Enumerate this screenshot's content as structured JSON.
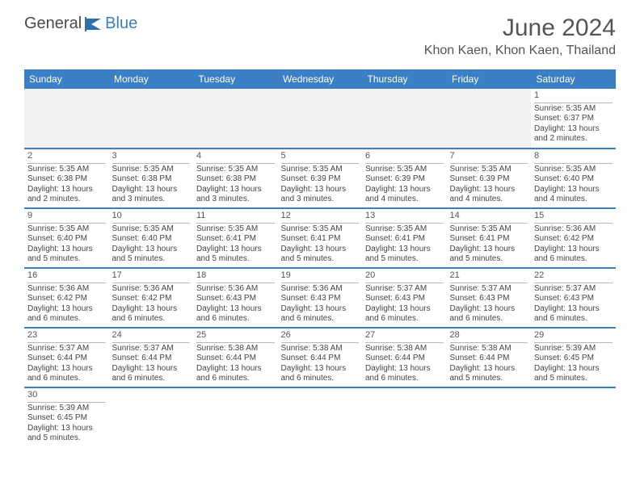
{
  "logo": {
    "part1": "General",
    "part2": "Blue"
  },
  "title": "June 2024",
  "location": "Khon Kaen, Khon Kaen, Thailand",
  "header_bg": "#3b7fc4",
  "weekdays": [
    "Sunday",
    "Monday",
    "Tuesday",
    "Wednesday",
    "Thursday",
    "Friday",
    "Saturday"
  ],
  "weeks": [
    [
      null,
      null,
      null,
      null,
      null,
      null,
      {
        "n": "1",
        "sr": "Sunrise: 5:35 AM",
        "ss": "Sunset: 6:37 PM",
        "dl": "Daylight: 13 hours and 2 minutes."
      }
    ],
    [
      {
        "n": "2",
        "sr": "Sunrise: 5:35 AM",
        "ss": "Sunset: 6:38 PM",
        "dl": "Daylight: 13 hours and 2 minutes."
      },
      {
        "n": "3",
        "sr": "Sunrise: 5:35 AM",
        "ss": "Sunset: 6:38 PM",
        "dl": "Daylight: 13 hours and 3 minutes."
      },
      {
        "n": "4",
        "sr": "Sunrise: 5:35 AM",
        "ss": "Sunset: 6:38 PM",
        "dl": "Daylight: 13 hours and 3 minutes."
      },
      {
        "n": "5",
        "sr": "Sunrise: 5:35 AM",
        "ss": "Sunset: 6:39 PM",
        "dl": "Daylight: 13 hours and 3 minutes."
      },
      {
        "n": "6",
        "sr": "Sunrise: 5:35 AM",
        "ss": "Sunset: 6:39 PM",
        "dl": "Daylight: 13 hours and 4 minutes."
      },
      {
        "n": "7",
        "sr": "Sunrise: 5:35 AM",
        "ss": "Sunset: 6:39 PM",
        "dl": "Daylight: 13 hours and 4 minutes."
      },
      {
        "n": "8",
        "sr": "Sunrise: 5:35 AM",
        "ss": "Sunset: 6:40 PM",
        "dl": "Daylight: 13 hours and 4 minutes."
      }
    ],
    [
      {
        "n": "9",
        "sr": "Sunrise: 5:35 AM",
        "ss": "Sunset: 6:40 PM",
        "dl": "Daylight: 13 hours and 5 minutes."
      },
      {
        "n": "10",
        "sr": "Sunrise: 5:35 AM",
        "ss": "Sunset: 6:40 PM",
        "dl": "Daylight: 13 hours and 5 minutes."
      },
      {
        "n": "11",
        "sr": "Sunrise: 5:35 AM",
        "ss": "Sunset: 6:41 PM",
        "dl": "Daylight: 13 hours and 5 minutes."
      },
      {
        "n": "12",
        "sr": "Sunrise: 5:35 AM",
        "ss": "Sunset: 6:41 PM",
        "dl": "Daylight: 13 hours and 5 minutes."
      },
      {
        "n": "13",
        "sr": "Sunrise: 5:35 AM",
        "ss": "Sunset: 6:41 PM",
        "dl": "Daylight: 13 hours and 5 minutes."
      },
      {
        "n": "14",
        "sr": "Sunrise: 5:35 AM",
        "ss": "Sunset: 6:41 PM",
        "dl": "Daylight: 13 hours and 5 minutes."
      },
      {
        "n": "15",
        "sr": "Sunrise: 5:36 AM",
        "ss": "Sunset: 6:42 PM",
        "dl": "Daylight: 13 hours and 6 minutes."
      }
    ],
    [
      {
        "n": "16",
        "sr": "Sunrise: 5:36 AM",
        "ss": "Sunset: 6:42 PM",
        "dl": "Daylight: 13 hours and 6 minutes."
      },
      {
        "n": "17",
        "sr": "Sunrise: 5:36 AM",
        "ss": "Sunset: 6:42 PM",
        "dl": "Daylight: 13 hours and 6 minutes."
      },
      {
        "n": "18",
        "sr": "Sunrise: 5:36 AM",
        "ss": "Sunset: 6:43 PM",
        "dl": "Daylight: 13 hours and 6 minutes."
      },
      {
        "n": "19",
        "sr": "Sunrise: 5:36 AM",
        "ss": "Sunset: 6:43 PM",
        "dl": "Daylight: 13 hours and 6 minutes."
      },
      {
        "n": "20",
        "sr": "Sunrise: 5:37 AM",
        "ss": "Sunset: 6:43 PM",
        "dl": "Daylight: 13 hours and 6 minutes."
      },
      {
        "n": "21",
        "sr": "Sunrise: 5:37 AM",
        "ss": "Sunset: 6:43 PM",
        "dl": "Daylight: 13 hours and 6 minutes."
      },
      {
        "n": "22",
        "sr": "Sunrise: 5:37 AM",
        "ss": "Sunset: 6:43 PM",
        "dl": "Daylight: 13 hours and 6 minutes."
      }
    ],
    [
      {
        "n": "23",
        "sr": "Sunrise: 5:37 AM",
        "ss": "Sunset: 6:44 PM",
        "dl": "Daylight: 13 hours and 6 minutes."
      },
      {
        "n": "24",
        "sr": "Sunrise: 5:37 AM",
        "ss": "Sunset: 6:44 PM",
        "dl": "Daylight: 13 hours and 6 minutes."
      },
      {
        "n": "25",
        "sr": "Sunrise: 5:38 AM",
        "ss": "Sunset: 6:44 PM",
        "dl": "Daylight: 13 hours and 6 minutes."
      },
      {
        "n": "26",
        "sr": "Sunrise: 5:38 AM",
        "ss": "Sunset: 6:44 PM",
        "dl": "Daylight: 13 hours and 6 minutes."
      },
      {
        "n": "27",
        "sr": "Sunrise: 5:38 AM",
        "ss": "Sunset: 6:44 PM",
        "dl": "Daylight: 13 hours and 6 minutes."
      },
      {
        "n": "28",
        "sr": "Sunrise: 5:38 AM",
        "ss": "Sunset: 6:44 PM",
        "dl": "Daylight: 13 hours and 5 minutes."
      },
      {
        "n": "29",
        "sr": "Sunrise: 5:39 AM",
        "ss": "Sunset: 6:45 PM",
        "dl": "Daylight: 13 hours and 5 minutes."
      }
    ],
    [
      {
        "n": "30",
        "sr": "Sunrise: 5:39 AM",
        "ss": "Sunset: 6:45 PM",
        "dl": "Daylight: 13 hours and 5 minutes."
      },
      null,
      null,
      null,
      null,
      null,
      null
    ]
  ]
}
